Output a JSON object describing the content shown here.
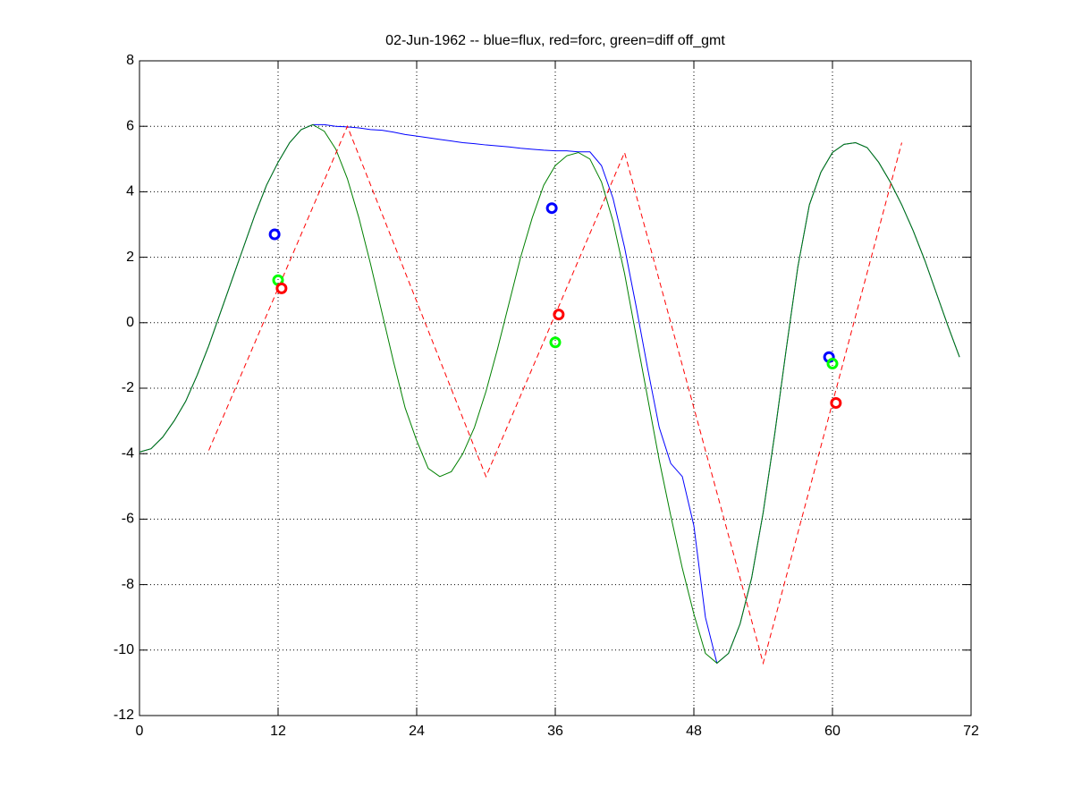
{
  "chart_data": {
    "type": "line",
    "title": "02-Jun-1962 -- blue=flux, red=forc, green=diff off_gmt",
    "xlim": [
      0,
      72
    ],
    "xticks": [
      0,
      12,
      24,
      36,
      48,
      60,
      72
    ],
    "ylim": [
      -12,
      8
    ],
    "yticks": [
      -12,
      -10,
      -8,
      -6,
      -4,
      -2,
      0,
      2,
      4,
      6,
      8
    ],
    "grid": true,
    "series": [
      {
        "color": "#0000ff",
        "linestyle": "solid",
        "x": [
          0,
          1,
          2,
          3,
          4,
          5,
          6,
          7,
          8,
          9,
          10,
          11,
          12,
          13,
          14,
          15,
          16,
          17,
          18,
          19,
          20,
          21,
          22,
          23,
          24,
          25,
          26,
          27,
          28,
          29,
          30,
          31,
          32,
          33,
          34,
          35,
          36,
          37,
          38,
          39,
          40,
          41,
          42,
          43,
          44,
          45,
          46,
          47,
          48,
          49,
          50,
          51,
          52,
          53,
          54,
          55,
          56,
          57,
          58,
          59,
          60,
          61,
          62,
          63,
          64,
          65,
          66,
          67,
          68,
          69,
          70,
          71
        ],
        "values": [
          -3.95,
          -3.85,
          -3.5,
          -3.0,
          -2.4,
          -1.6,
          -0.7,
          0.3,
          1.3,
          2.3,
          3.3,
          4.2,
          4.9,
          5.5,
          5.9,
          6.05,
          6.05,
          6.0,
          5.98,
          5.95,
          5.9,
          5.88,
          5.82,
          5.75,
          5.7,
          5.65,
          5.6,
          5.55,
          5.5,
          5.47,
          5.43,
          5.4,
          5.37,
          5.33,
          5.3,
          5.27,
          5.25,
          5.25,
          5.22,
          5.22,
          4.8,
          3.8,
          2.3,
          0.5,
          -1.4,
          -3.2,
          -4.3,
          -4.7,
          -6.2,
          -9.0,
          -10.4,
          -10.1,
          -9.2,
          -7.8,
          -5.8,
          -3.4,
          -0.8,
          1.7,
          3.6,
          4.6,
          5.2,
          5.45,
          5.5,
          5.35,
          4.9,
          4.3,
          3.6,
          2.8,
          1.9,
          0.9,
          -0.1,
          -1.05
        ]
      },
      {
        "color": "#008000",
        "linestyle": "solid",
        "x": [
          0,
          1,
          2,
          3,
          4,
          5,
          6,
          7,
          8,
          9,
          10,
          11,
          12,
          13,
          14,
          15,
          16,
          17,
          18,
          19,
          20,
          21,
          22,
          23,
          24,
          25,
          26,
          27,
          28,
          29,
          30,
          31,
          32,
          33,
          34,
          35,
          36,
          37,
          38,
          39,
          40,
          41,
          42,
          43,
          44,
          45,
          46,
          47,
          48,
          49,
          50,
          51,
          52,
          53,
          54,
          55,
          56,
          57,
          58,
          59,
          60,
          61,
          62,
          63,
          64,
          65,
          66,
          67,
          68,
          69,
          70,
          71
        ],
        "values": [
          -3.95,
          -3.85,
          -3.5,
          -3.0,
          -2.4,
          -1.6,
          -0.7,
          0.3,
          1.3,
          2.3,
          3.3,
          4.2,
          4.9,
          5.5,
          5.9,
          6.05,
          5.85,
          5.3,
          4.4,
          3.2,
          1.8,
          0.3,
          -1.2,
          -2.6,
          -3.6,
          -4.45,
          -4.7,
          -4.55,
          -4.0,
          -3.2,
          -2.1,
          -0.8,
          0.6,
          2.0,
          3.2,
          4.2,
          4.8,
          5.1,
          5.2,
          5.0,
          4.3,
          3.1,
          1.5,
          -0.4,
          -2.3,
          -4.2,
          -5.9,
          -7.5,
          -8.9,
          -10.1,
          -10.4,
          -10.1,
          -9.2,
          -7.8,
          -5.8,
          -3.4,
          -0.8,
          1.7,
          3.6,
          4.6,
          5.2,
          5.45,
          5.5,
          5.35,
          4.9,
          4.3,
          3.6,
          2.8,
          1.9,
          0.9,
          -0.1,
          -1.05
        ]
      },
      {
        "color": "#ff0000",
        "linestyle": "dashed",
        "x": [
          6,
          18,
          30,
          42,
          54,
          66
        ],
        "values": [
          -3.9,
          6.0,
          -4.7,
          5.2,
          -10.4,
          5.5
        ]
      },
      {
        "color": "#0000ff",
        "marker": "o",
        "x": [
          11.7,
          35.7,
          59.7
        ],
        "values": [
          2.7,
          3.5,
          -1.05
        ]
      },
      {
        "color": "#00ff00",
        "marker": "o",
        "x": [
          12,
          36,
          60
        ],
        "values": [
          1.3,
          -0.6,
          -1.25
        ]
      },
      {
        "color": "#ff0000",
        "marker": "o",
        "x": [
          12.3,
          36.3,
          60.3
        ],
        "values": [
          1.05,
          0.25,
          -2.45
        ]
      }
    ]
  }
}
